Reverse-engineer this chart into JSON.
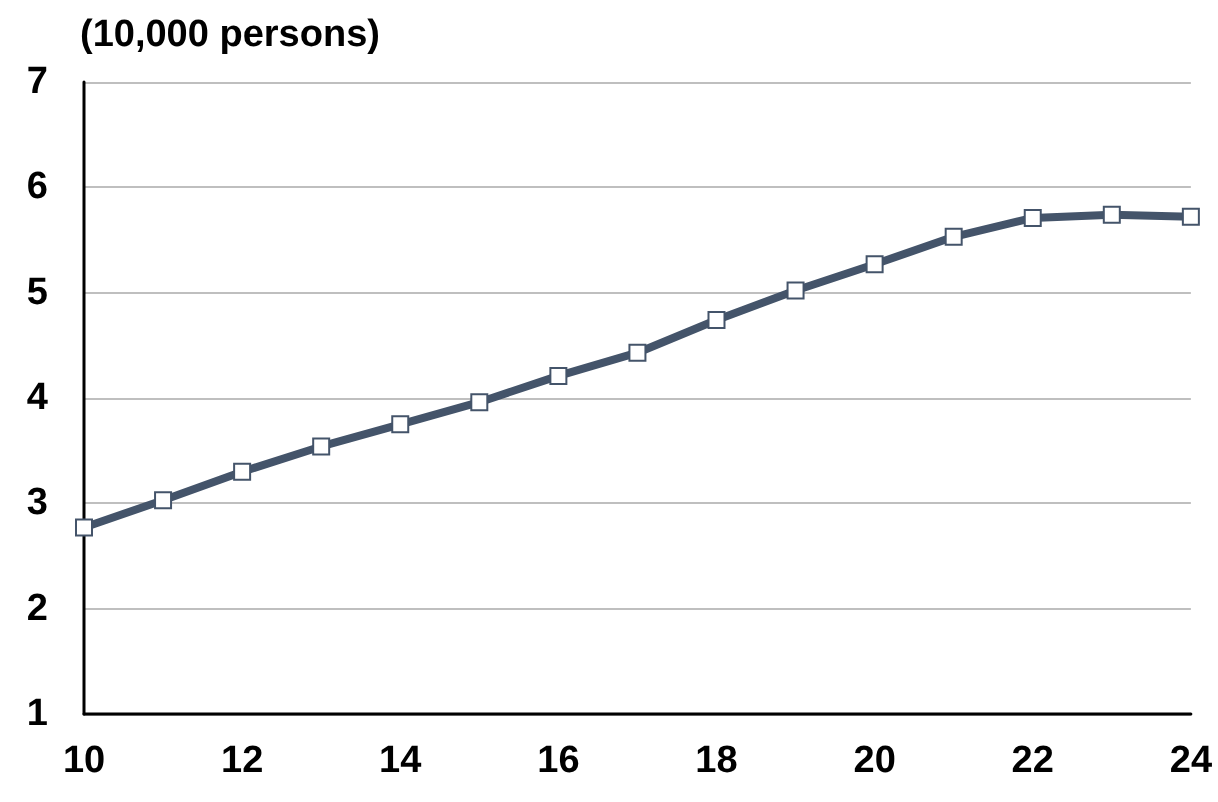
{
  "chart_data": {
    "type": "line",
    "ylabel": "(10,000 persons)",
    "x": [
      10,
      11,
      12,
      13,
      14,
      15,
      16,
      17,
      18,
      19,
      20,
      21,
      22,
      23,
      24
    ],
    "series": [
      {
        "color": "#44546a",
        "values": [
          2.77,
          3.03,
          3.3,
          3.54,
          3.75,
          3.96,
          4.21,
          4.43,
          4.74,
          5.02,
          5.27,
          5.53,
          5.71,
          5.74,
          5.72
        ]
      }
    ],
    "xlim": [
      10,
      24
    ],
    "xticks": [
      10,
      12,
      14,
      16,
      18,
      20,
      22,
      24
    ],
    "ylim": [
      1,
      7
    ],
    "yticks": [
      1,
      2,
      3,
      4,
      5,
      6,
      7
    ],
    "grid": "y",
    "marker": "square",
    "line_style": "solid"
  }
}
